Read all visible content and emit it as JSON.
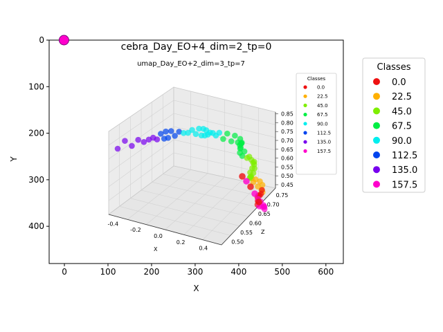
{
  "chart_data": [
    {
      "type": "scatter",
      "title": "cebra_Day_EO+4_dim=2_tp=0",
      "xlabel": "X",
      "ylabel": "Y",
      "xlim": [
        -35,
        640
      ],
      "ylim": [
        480,
        0
      ],
      "y_inverted": true,
      "xticks": [
        "0",
        "100",
        "200",
        "300",
        "400",
        "500",
        "600"
      ],
      "xtick_values": [
        0,
        100,
        200,
        300,
        400,
        500,
        600
      ],
      "yticks": [
        "0",
        "100",
        "200",
        "300",
        "400"
      ],
      "ytick_values": [
        0,
        100,
        200,
        300,
        400
      ],
      "grid": false,
      "legend_placement": "outside-right",
      "legend_title": "Classes",
      "classes": [
        {
          "label": "0.0",
          "color": "#ee1111"
        },
        {
          "label": "22.5",
          "color": "#ffb000"
        },
        {
          "label": "45.0",
          "color": "#7fee00"
        },
        {
          "label": "67.5",
          "color": "#00ee44"
        },
        {
          "label": "90.0",
          "color": "#00eeee"
        },
        {
          "label": "112.5",
          "color": "#0044ee"
        },
        {
          "label": "135.0",
          "color": "#7700ee"
        },
        {
          "label": "157.5",
          "color": "#ff00cc"
        }
      ],
      "points": [
        {
          "x": -1,
          "y": 0,
          "class": "157.5"
        }
      ]
    },
    {
      "type": "scatter",
      "title": "umap_Day_EO+2_dim=3_tp=7",
      "xlabel": "X",
      "ylabel": "",
      "zlabel": "Z",
      "xticks": [
        "-0.4",
        "-0.2",
        "0.0",
        "0.2",
        "0.4"
      ],
      "yticks": [
        "0.50",
        "0.55",
        "0.60",
        "0.65",
        "0.70",
        "0.75"
      ],
      "zticks": [
        "0.45",
        "0.50",
        "0.55",
        "0.60",
        "0.65",
        "0.70",
        "0.75",
        "0.80",
        "0.85"
      ],
      "legend_title": "Classes",
      "legend_placement": "top-right",
      "legend_labels": [
        "0.0",
        "22.5",
        "45.0",
        "67.5",
        "90.0",
        "112.5",
        "135.0",
        "157.5"
      ],
      "point_count": 80
    }
  ]
}
